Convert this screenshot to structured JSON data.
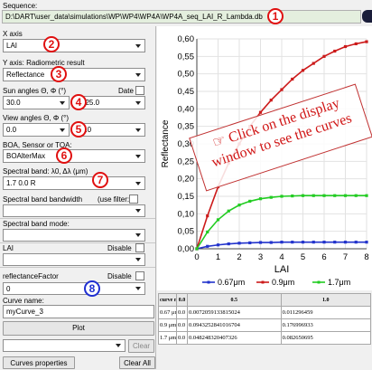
{
  "sequence": {
    "label": "Sequence:",
    "path": "D:\\DART\\user_data\\simulations\\WP\\WP4\\WP4A\\WP4A_seq_LAI_R_Lambda.db"
  },
  "xaxis": {
    "label": "X axis",
    "value": "LAI"
  },
  "yaxis": {
    "label": "Y axis: Radiometric result",
    "value": "Reflectance"
  },
  "sun": {
    "label": "Sun angles Θ, Φ  (°)",
    "date_label": "Date",
    "theta": "30.0",
    "phi": "225.0"
  },
  "view": {
    "label": "View angles Θ, Φ  (°)",
    "theta": "0.0",
    "phi": "0.0"
  },
  "boa": {
    "label": "BOA, Sensor or TOA:",
    "value": "BOAlterMax"
  },
  "band": {
    "label": "Spectral band: λ0, Δλ (μm)",
    "value": "1.7   0.0   R"
  },
  "bandwidth": {
    "label": "Spectral band bandwidth",
    "filter_label": "(use filter:"
  },
  "bandmode": {
    "label": "Spectral band mode:"
  },
  "lai": {
    "label": "LAI",
    "disable_label": "Disable"
  },
  "refl": {
    "label": "reflectanceFactor",
    "disable_label": "Disable",
    "value": "0"
  },
  "curve": {
    "label": "Curve name:",
    "value": "myCurve_3"
  },
  "buttons": {
    "plot": "Plot",
    "clear": "Clear",
    "curves_properties": "Curves properties",
    "clear_all": "Clear All"
  },
  "badges": [
    "1",
    "2",
    "3",
    "4",
    "5",
    "6",
    "7",
    "8"
  ],
  "callout": {
    "line1": "☞ Click on the display",
    "line2": "window to see the curves"
  },
  "table": {
    "header": [
      "curve name",
      "0.0",
      "0.5",
      "1.0"
    ],
    "rows": [
      [
        "0.67 μm",
        "0.0",
        "0.0072059133815024",
        "0.011296459"
      ],
      [
        "0.9 μm",
        "0.0",
        "0.0943252841016704",
        "0.176996933"
      ],
      [
        "1.7 μm",
        "0.0",
        "0.048248320407326",
        "0.082650695"
      ]
    ]
  },
  "chart_data": {
    "type": "line",
    "ylabel": "Reflectance",
    "xlabel": "LAI",
    "xlim": [
      0,
      8
    ],
    "ylim": [
      0,
      0.6
    ],
    "xticks": [
      "0",
      "1",
      "2",
      "3",
      "4",
      "5",
      "6",
      "7",
      "8"
    ],
    "yticks": [
      "0,00",
      "0,05",
      "0,10",
      "0,15",
      "0,20",
      "0,25",
      "0,30",
      "0,35",
      "0,40",
      "0,45",
      "0,50",
      "0,55",
      "0,60"
    ],
    "legend_position": "bottom",
    "series": [
      {
        "name": "0.67μm",
        "color": "#2233cc",
        "x": [
          0,
          0.5,
          1,
          1.5,
          2,
          2.5,
          3,
          3.5,
          4,
          4.5,
          5,
          5.5,
          6,
          6.5,
          7,
          7.5,
          8
        ],
        "values": [
          0,
          0.007,
          0.011,
          0.014,
          0.016,
          0.017,
          0.018,
          0.018,
          0.019,
          0.019,
          0.019,
          0.019,
          0.019,
          0.019,
          0.019,
          0.019,
          0.019
        ]
      },
      {
        "name": "0.9μm",
        "color": "#cc1a1a",
        "x": [
          0,
          0.5,
          1,
          1.5,
          2,
          2.5,
          3,
          3.5,
          4,
          4.5,
          5,
          5.5,
          6,
          6.5,
          7,
          7.5,
          8
        ],
        "values": [
          0,
          0.094,
          0.177,
          0.245,
          0.3,
          0.35,
          0.39,
          0.425,
          0.455,
          0.485,
          0.51,
          0.53,
          0.55,
          0.565,
          0.578,
          0.586,
          0.592
        ]
      },
      {
        "name": "1.7μm",
        "color": "#22cc22",
        "x": [
          0,
          0.5,
          1,
          1.5,
          2,
          2.5,
          3,
          3.5,
          4,
          4.5,
          5,
          5.5,
          6,
          6.5,
          7,
          7.5,
          8
        ],
        "values": [
          0,
          0.048,
          0.083,
          0.108,
          0.125,
          0.136,
          0.143,
          0.147,
          0.15,
          0.151,
          0.152,
          0.152,
          0.152,
          0.152,
          0.152,
          0.152,
          0.152
        ]
      }
    ]
  }
}
